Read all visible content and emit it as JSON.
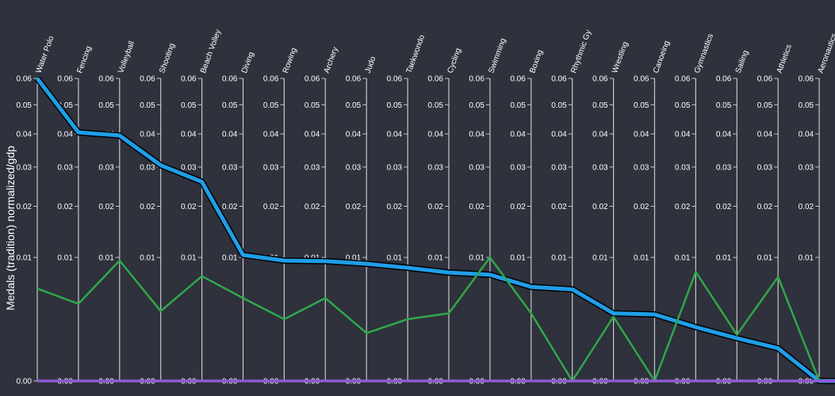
{
  "chart_data": {
    "type": "line",
    "title": "",
    "ylabel": "Medals (tradition) normalized/gdp",
    "y_scale": "sqrt",
    "ylim": [
      0,
      0.06
    ],
    "y_ticks": [
      "0.00",
      "0.01",
      "0.02",
      "0.03",
      "0.04",
      "0.05",
      "0.06"
    ],
    "axis_tick_values": [
      0,
      0.01,
      0.02,
      0.03,
      0.04,
      0.05,
      0.06
    ],
    "categories": [
      "Water Polo",
      "Fencing",
      "Volleyball",
      "Shooting",
      "Beach Volley",
      "Diving",
      "Rowing",
      "Archery",
      "Judo",
      "Taekwondo",
      "Cycling",
      "Swimming",
      "Boxing",
      "Rhythmic Gy",
      "Wrestling",
      "Canoeing",
      "Gymnastics",
      "Sailing",
      "Athletics",
      "Aeronautics"
    ],
    "series": [
      {
        "color": "#000000",
        "values": [
          0.06,
          0.0405,
          0.0395,
          0.0305,
          0.026,
          0.0104,
          0.0095,
          0.0094,
          0.009,
          0.0084,
          0.0077,
          0.0074,
          0.0058,
          0.0055,
          0.003,
          0.0029,
          0.0019,
          0.0012,
          0.0007,
          0.0
        ]
      },
      {
        "color": "#1f9ee8",
        "values": [
          0.06,
          0.0405,
          0.0395,
          0.0305,
          0.026,
          0.0104,
          0.0095,
          0.0094,
          0.009,
          0.0084,
          0.0077,
          0.0074,
          0.0058,
          0.0055,
          0.003,
          0.0029,
          0.0019,
          0.0012,
          0.0007,
          0.0
        ]
      },
      {
        "color": "#2ea84a",
        "values": [
          0.0056,
          0.0039,
          0.0095,
          0.0032,
          0.0072,
          0.0045,
          0.0025,
          0.0045,
          0.0015,
          0.0025,
          0.003,
          0.01,
          0.003,
          0.0,
          0.0027,
          0.0,
          0.0078,
          0.0014,
          0.0071,
          0.0
        ]
      },
      {
        "color": "#8e5bd6",
        "values": [
          0,
          0,
          0,
          0,
          0,
          0,
          0,
          0,
          0,
          0,
          0,
          0,
          0,
          0,
          0,
          0,
          0,
          0,
          0,
          0
        ]
      }
    ],
    "grid": false,
    "legend": "none"
  }
}
